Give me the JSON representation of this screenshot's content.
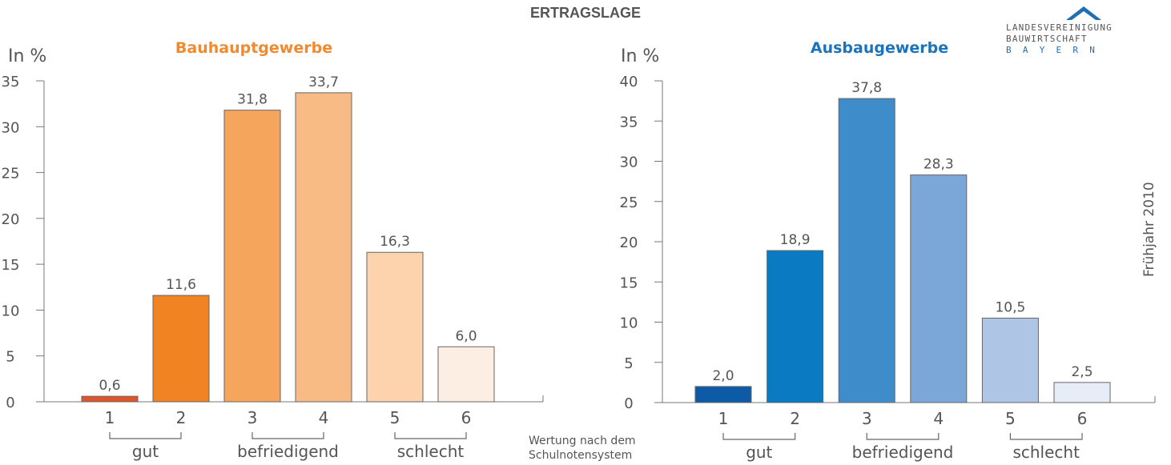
{
  "header": {
    "title": "ERTRAGSLAGE"
  },
  "logo": {
    "line1": "LANDESVEREINIGUNG",
    "line2": "BAUWIRTSCHAFT",
    "line3": "B A Y E R N",
    "roof_color": "#1f6fb2",
    "text_color": "#555555",
    "accent_color": "#1f6fb2"
  },
  "side_label": "Frühjahr 2010",
  "footnote": {
    "line1": "Wertung nach dem",
    "line2": "Schulnotensystem"
  },
  "chart_data": [
    {
      "type": "bar",
      "title": "Bauhauptgewerbe",
      "title_color": "#f08a2c",
      "ylabel": "In %",
      "ylim": [
        0,
        35
      ],
      "yticks": [
        "0",
        "5",
        "10",
        "15",
        "20",
        "25",
        "30",
        "35"
      ],
      "categories": [
        "1",
        "2",
        "3",
        "4",
        "5",
        "6"
      ],
      "values": [
        0.6,
        11.6,
        31.8,
        33.7,
        16.3,
        6.0
      ],
      "value_labels": [
        "0,6",
        "11,6",
        "31,8",
        "33,7",
        "16,3",
        "6,0"
      ],
      "colors": [
        "#e0542a",
        "#f28322",
        "#f6a55d",
        "#f9bb85",
        "#fcd3ad",
        "#fdeee3"
      ],
      "groups": [
        "gut",
        "befriedigend",
        "schlecht"
      ]
    },
    {
      "type": "bar",
      "title": "Ausbaugewerbe",
      "title_color": "#1a74bb",
      "ylabel": "In %",
      "ylim": [
        0,
        40
      ],
      "yticks": [
        "0",
        "5",
        "10",
        "15",
        "20",
        "25",
        "30",
        "35",
        "40"
      ],
      "categories": [
        "1",
        "2",
        "3",
        "4",
        "5",
        "6"
      ],
      "values": [
        2.0,
        18.9,
        37.8,
        28.3,
        10.5,
        2.5
      ],
      "value_labels": [
        "2,0",
        "18,9",
        "37,8",
        "28,3",
        "10,5",
        "2,5"
      ],
      "colors": [
        "#0d5aa6",
        "#0a7ac2",
        "#3f8ccb",
        "#7aa7d8",
        "#aec5e6",
        "#e6edf7"
      ],
      "groups": [
        "gut",
        "befriedigend",
        "schlecht"
      ]
    }
  ]
}
